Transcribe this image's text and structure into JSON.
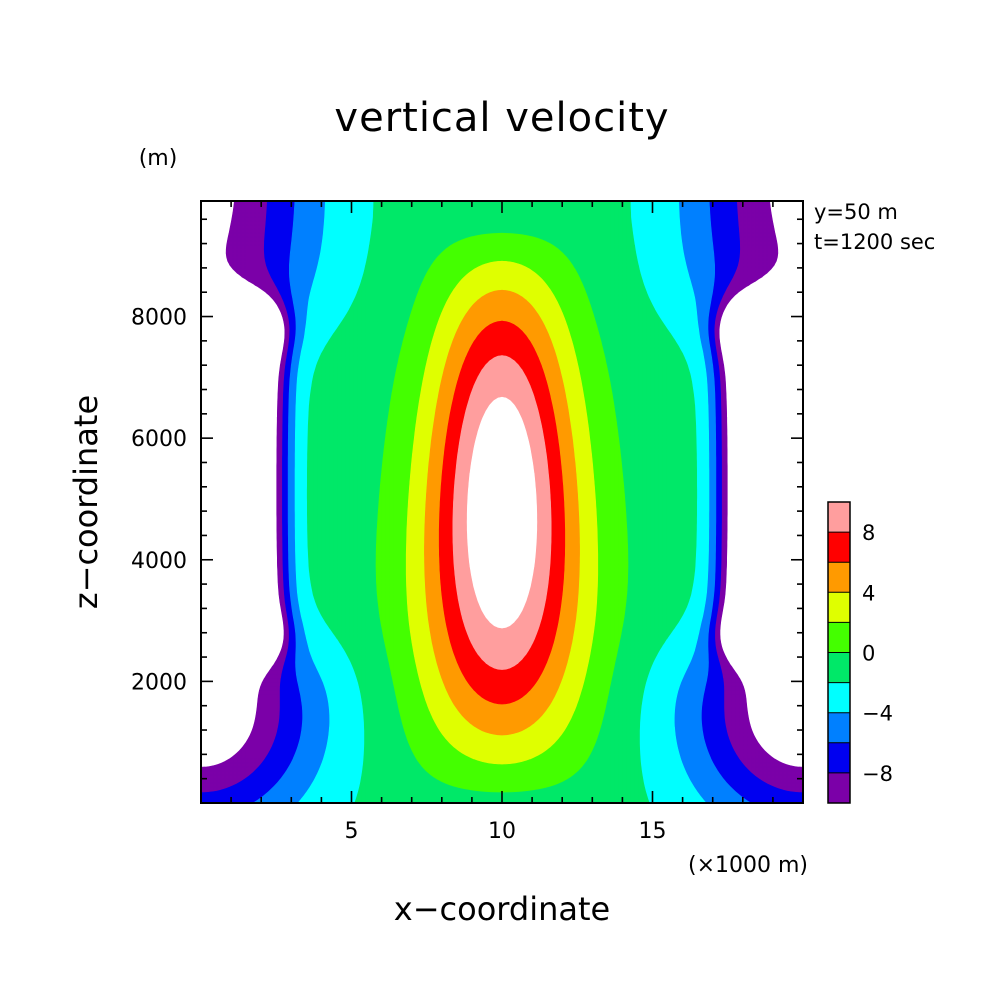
{
  "chart_data": {
    "type": "contour",
    "title": "vertical velocity",
    "xlabel": "x−coordinate",
    "ylabel": "z−coordinate",
    "x_unit": "(×1000 m)",
    "y_unit": "(m)",
    "annotations": [
      "y=50 m",
      "t=1200 sec"
    ],
    "xlim": [
      0,
      20
    ],
    "ylim": [
      0,
      9900
    ],
    "x_ticks": [
      "5",
      "10",
      "15"
    ],
    "x_tick_values": [
      5,
      10,
      15
    ],
    "y_ticks": [
      "2000",
      "4000",
      "6000",
      "8000"
    ],
    "y_tick_values": [
      2000,
      4000,
      6000,
      8000
    ],
    "colorbar": {
      "min": -10,
      "max": 10,
      "step": 2,
      "labels": [
        "8",
        "4",
        "0",
        "−4",
        "−8"
      ],
      "label_values": [
        8,
        4,
        0,
        -4,
        -8
      ],
      "colors": [
        "#7b00a8",
        "#0000f0",
        "#0080ff",
        "#00ffff",
        "#00e868",
        "#44ff00",
        "#dfff00",
        "#ff9a00",
        "#ff0000",
        "#ff9e9e"
      ]
    },
    "field": {
      "description_levels": [
        -10,
        -8,
        -6,
        -4,
        -2,
        0,
        2,
        4,
        6,
        8,
        10
      ],
      "updraft_center_x": 10,
      "updraft_peak_z": 4300,
      "downdraft_x": [
        1.5,
        18.5
      ]
    }
  }
}
